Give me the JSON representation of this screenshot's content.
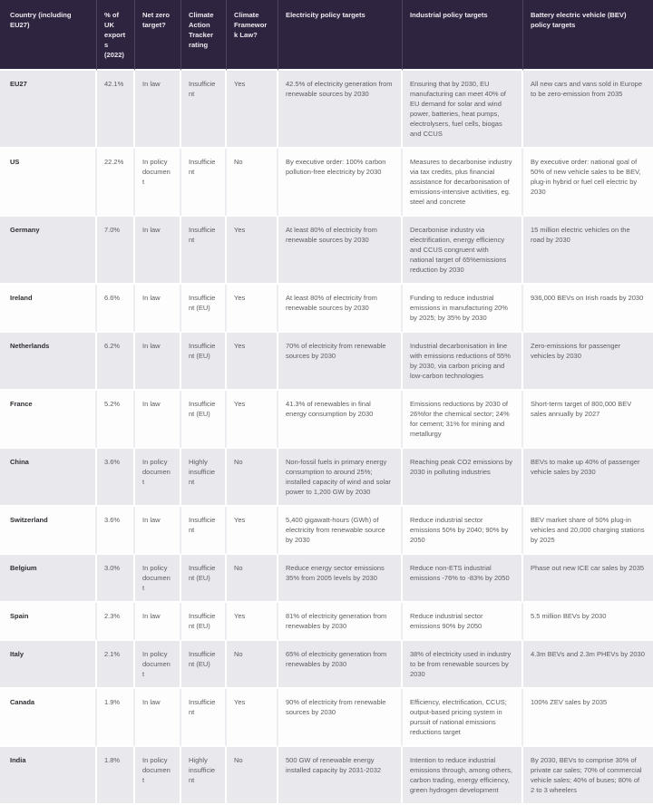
{
  "colors": {
    "header_bg": "#2f2440",
    "header_text": "#ece9ee",
    "header_divider": "#4e4160",
    "row_shaded": "#e9e8ec",
    "row_plain": "#fdfdfe",
    "body_text": "#5c5c60",
    "country_text": "#2e2e33"
  },
  "table": {
    "columns": [
      {
        "key": "country",
        "label": "Country (including EU27)"
      },
      {
        "key": "uk_exports",
        "label": "% of UK exports (2022)"
      },
      {
        "key": "net_zero_target",
        "label": "Net zero target?"
      },
      {
        "key": "cat_rating",
        "label": "Climate Action Tracker rating"
      },
      {
        "key": "framework_law",
        "label": "Climate Framework Law?"
      },
      {
        "key": "electricity_targets",
        "label": "Electricity policy targets"
      },
      {
        "key": "industrial_targets",
        "label": "Industrial policy targets"
      },
      {
        "key": "bev_targets",
        "label": "Battery electric vehicle (BEV) policy targets"
      }
    ],
    "rows": [
      {
        "country": "EU27",
        "uk_exports": "42.1%",
        "net_zero_target": "In law",
        "cat_rating": "Insufficient",
        "framework_law": "Yes",
        "electricity_targets": "42.5% of electricity generation from renewable sources by 2030",
        "industrial_targets": "Ensuring that by 2030, EU manufacturing can meet 40% of EU demand for solar and wind power, batteries, heat pumps, electrolysers, fuel cells, biogas and CCUS",
        "bev_targets": "All new cars and vans sold in Europe to be zero-emission from 2035"
      },
      {
        "country": "US",
        "uk_exports": "22.2%",
        "net_zero_target": "In policy document",
        "cat_rating": "Insufficient",
        "framework_law": "No",
        "electricity_targets": "By executive order: 100% carbon pollution-free electricity by 2030",
        "industrial_targets": "Measures to decarbonise industry via tax credits, plus financial assistance for decarbonisation of emissions-intensive activities, eg. steel and concrete",
        "bev_targets": "By executive order: national goal of 50% of new vehicle sales to be BEV, plug-in hybrid or fuel cell electric by 2030"
      },
      {
        "country": "Germany",
        "uk_exports": "7.0%",
        "net_zero_target": "In law",
        "cat_rating": "Insufficient",
        "framework_law": "Yes",
        "electricity_targets": "At least 80% of electricity from renewable sources by 2030",
        "industrial_targets": "Decarbonise industry via electrification, energy efficiency and CCUS congruent with national target of 65%emissions reduction by 2030",
        "bev_targets": "15 million electric vehicles on the road by 2030"
      },
      {
        "country": "Ireland",
        "uk_exports": "6.6%",
        "net_zero_target": "In law",
        "cat_rating": "Insufficient (EU)",
        "framework_law": "Yes",
        "electricity_targets": "At least 80% of electricity from renewable sources by 2030",
        "industrial_targets": "Funding to reduce industrial emissions in manufacturing 20% by 2025; by 35% by 2030",
        "bev_targets": "936,000 BEVs on Irish roads by 2030"
      },
      {
        "country": "Netherlands",
        "uk_exports": "6.2%",
        "net_zero_target": "In law",
        "cat_rating": "Insufficient (EU)",
        "framework_law": "Yes",
        "electricity_targets": "70% of electricity from renewable sources by 2030",
        "industrial_targets": "Industrial decarbonisation in line with emissions reductions of 55% by 2030, via carbon pricing and low-carbon technologies",
        "bev_targets": "Zero-emissions for passenger vehicles by 2030"
      },
      {
        "country": "France",
        "uk_exports": "5.2%",
        "net_zero_target": "In law",
        "cat_rating": "Insufficient (EU)",
        "framework_law": "Yes",
        "electricity_targets": "41.3% of renewables in final energy consumption by 2030",
        "industrial_targets": "Emissions reductions by 2030 of 26%for the chemical sector; 24% for cement; 31% for mining and metallurgy",
        "bev_targets": "Short-term target of 800,000 BEV sales annually by 2027"
      },
      {
        "country": "China",
        "uk_exports": "3.6%",
        "net_zero_target": "In policy document",
        "cat_rating": "Highly insufficient",
        "framework_law": "No",
        "electricity_targets": "Non-fossil fuels in primary energy consumption to around 25%; installed capacity of wind and solar power to 1,200 GW by 2030",
        "industrial_targets": "Reaching peak CO2 emissions by 2030 in polluting industries",
        "bev_targets": "BEVs to make up 40% of passenger vehicle sales by 2030"
      },
      {
        "country": "Switzerland",
        "uk_exports": "3.6%",
        "net_zero_target": "In law",
        "cat_rating": "Insufficient",
        "framework_law": "Yes",
        "electricity_targets": "5,400 gigawatt-hours (GWh) of electricity from renewable source by 2030",
        "industrial_targets": "Reduce industrial sector emissions 50% by 2040; 90% by 2050",
        "bev_targets": "BEV market share of 50% plug-in vehicles and 20,000 charging stations by 2025"
      },
      {
        "country": "Belgium",
        "uk_exports": "3.0%",
        "net_zero_target": "In policy document",
        "cat_rating": "Insufficient (EU)",
        "framework_law": "No",
        "electricity_targets": "Reduce energy sector emissions 35% from 2005 levels by 2030",
        "industrial_targets": "Reduce non-ETS industrial emissions -76% to -83% by 2050",
        "bev_targets": "Phase out new ICE car sales by 2035"
      },
      {
        "country": "Spain",
        "uk_exports": "2.3%",
        "net_zero_target": "In law",
        "cat_rating": "Insufficient (EU)",
        "framework_law": "Yes",
        "electricity_targets": "81% of electricity generation from renewables by 2030",
        "industrial_targets": "Reduce industrial sector emissions 90% by 2050",
        "bev_targets": "5.5 million BEVs by 2030"
      },
      {
        "country": "Italy",
        "uk_exports": "2.1%",
        "net_zero_target": "In policy document",
        "cat_rating": "Insufficient (EU)",
        "framework_law": "No",
        "electricity_targets": "65% of electricity generation from renewables by 2030",
        "industrial_targets": "38% of electricity used in industry to be from renewable sources by 2030",
        "bev_targets": "4.3m BEVs and 2.3m PHEVs by 2030"
      },
      {
        "country": "Canada",
        "uk_exports": "1.9%",
        "net_zero_target": "In law",
        "cat_rating": "Insufficient",
        "framework_law": "Yes",
        "electricity_targets": "90% of electricity from renewable sources by 2030",
        "industrial_targets": "Efficiency, electrification, CCUS; output-based pricing system in pursuit of national emissions reductions target",
        "bev_targets": "100% ZEV sales by 2035"
      },
      {
        "country": "India",
        "uk_exports": "1.8%",
        "net_zero_target": "In policy document",
        "cat_rating": "Highly insufficient",
        "framework_law": "No",
        "electricity_targets": "500 GW of renewable energy installed capacity by 2031-2032",
        "industrial_targets": "Intention to reduce industrial emissions through, among others, carbon trading, energy efficiency, green hydrogen development",
        "bev_targets": "By 2030, BEVs to comprise 30% of private car sales; 70% of commercial vehicle sales; 40% of buses; 80% of 2 to 3 wheelers"
      }
    ]
  }
}
